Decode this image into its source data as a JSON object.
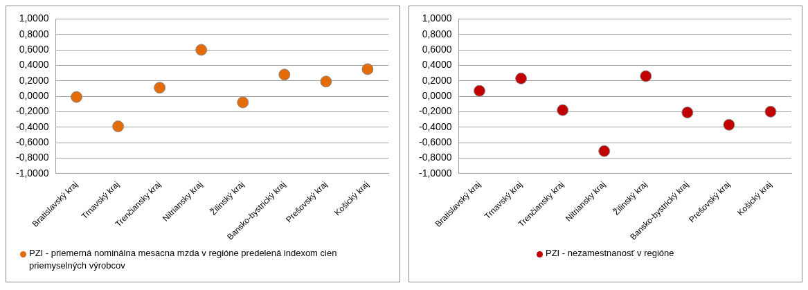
{
  "chart_data": [
    {
      "type": "scatter",
      "categories": [
        "Bratislavský kraj",
        "Trnavský kraj",
        "Trenčiansky kraj",
        "Nitriansky kraj",
        "Žilinský kraj",
        "Bansko-bystrický kraj",
        "Prešovský kraj",
        "Košický kraj"
      ],
      "series": [
        {
          "name": "PZI - priemerná nominálna mesacna mzda v regióne predelená indexom cien priemyselných výrobcov",
          "color": "#e36c09",
          "values": [
            -0.01,
            -0.39,
            0.11,
            0.6,
            -0.08,
            0.28,
            0.19,
            0.35
          ]
        }
      ],
      "ylim": [
        -1,
        1
      ],
      "yticks": [
        {
          "value": -1,
          "label": "-1,0000"
        },
        {
          "value": -0.8,
          "label": "-0,8000"
        },
        {
          "value": -0.6,
          "label": "-0,6000"
        },
        {
          "value": -0.4,
          "label": "-0,4000"
        },
        {
          "value": -0.2,
          "label": "-0,2000"
        },
        {
          "value": 0,
          "label": "0,0000"
        },
        {
          "value": 0.2,
          "label": "0,2000"
        },
        {
          "value": 0.4,
          "label": "0,4000"
        },
        {
          "value": 0.6,
          "label": "0,6000"
        },
        {
          "value": 0.8,
          "label": "0,8000"
        },
        {
          "value": 1,
          "label": "1,0000"
        }
      ],
      "grid": "y",
      "legend": "bottom",
      "marker": "circle"
    },
    {
      "type": "scatter",
      "categories": [
        "Bratislavský kraj",
        "Trnavský kraj",
        "Trenčiansky kraj",
        "Nitriansky kraj",
        "Žilinský kraj",
        "Bansko-bystrický kraj",
        "Prešovský kraj",
        "Košický kraj"
      ],
      "series": [
        {
          "name": "PZI - nezamestnanosť v regióne",
          "color": "#c00000",
          "values": [
            0.07,
            0.23,
            -0.18,
            -0.71,
            0.26,
            -0.21,
            -0.37,
            -0.2
          ]
        }
      ],
      "ylim": [
        -1,
        1
      ],
      "yticks": [
        {
          "value": -1,
          "label": "-1,0000"
        },
        {
          "value": -0.8,
          "label": "-0,8000"
        },
        {
          "value": -0.6,
          "label": "-0,6000"
        },
        {
          "value": -0.4,
          "label": "-0,4000"
        },
        {
          "value": -0.2,
          "label": "-0,2000"
        },
        {
          "value": 0,
          "label": "0,0000"
        },
        {
          "value": 0.2,
          "label": "0,2000"
        },
        {
          "value": 0.4,
          "label": "0,4000"
        },
        {
          "value": 0.6,
          "label": "0,6000"
        },
        {
          "value": 0.8,
          "label": "0,8000"
        },
        {
          "value": 1,
          "label": "1,0000"
        }
      ],
      "grid": "y",
      "legend": "bottom",
      "marker": "circle"
    }
  ]
}
